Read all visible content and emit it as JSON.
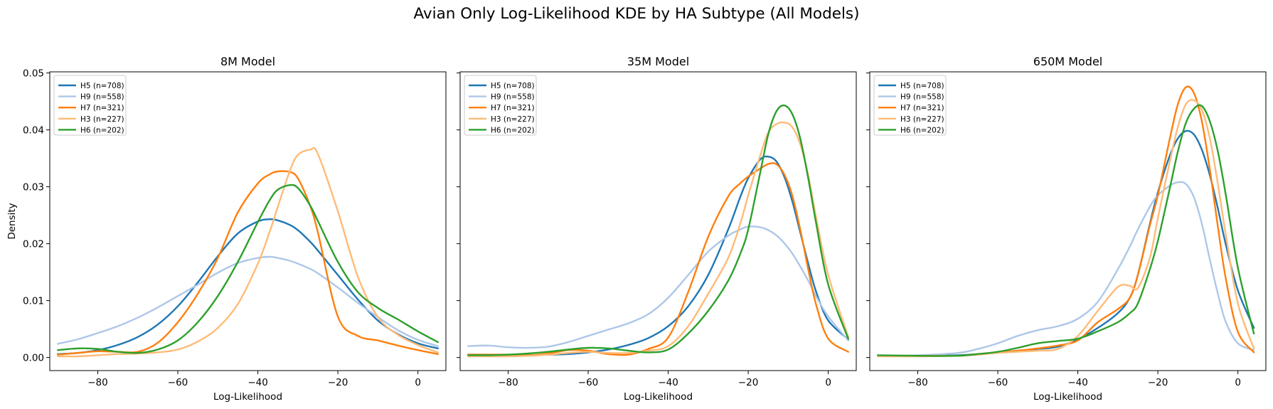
{
  "figure": {
    "suptitle": "Avian Only Log-Likelihood KDE by HA Subtype (All Models)"
  },
  "colors": {
    "H5": "#1f77b4",
    "H9": "#aec7e8",
    "H7": "#ff7f0e",
    "H3": "#ffbb78",
    "H6": "#2ca02c"
  },
  "chart_data": [
    {
      "type": "line",
      "title": "8M Model",
      "xlabel": "Log-Likelihood",
      "ylabel": "Density",
      "xlim": [
        -92,
        7
      ],
      "ylim": [
        -0.0023,
        0.0502
      ],
      "xticks": [
        -80,
        -60,
        -40,
        -20,
        0
      ],
      "xtick_labels": [
        "−80",
        "−60",
        "−40",
        "−20",
        "0"
      ],
      "yticks": [
        0.0,
        0.01,
        0.02,
        0.03,
        0.04,
        0.05
      ],
      "ytick_labels": [
        "0.00",
        "0.01",
        "0.02",
        "0.03",
        "0.04",
        "0.05"
      ],
      "legend_position": "upper-left",
      "grid": false,
      "x": [
        -90,
        -85,
        -80,
        -75,
        -70,
        -65,
        -60,
        -55,
        -50,
        -45,
        -40,
        -37,
        -35,
        -32,
        -30,
        -27,
        -25,
        -20,
        -15,
        -10,
        -5,
        0,
        5
      ],
      "series": [
        {
          "name": "H5 (n=708)",
          "key": "H5",
          "values": [
            0.0006,
            0.0008,
            0.0013,
            0.0022,
            0.0036,
            0.0058,
            0.009,
            0.0132,
            0.0178,
            0.0218,
            0.0239,
            0.0243,
            0.0241,
            0.0233,
            0.0224,
            0.0204,
            0.0188,
            0.0145,
            0.0102,
            0.0065,
            0.0041,
            0.0025,
            0.0016
          ]
        },
        {
          "name": "H9 (n=558)",
          "key": "H9",
          "values": [
            0.0024,
            0.0032,
            0.0043,
            0.0055,
            0.007,
            0.0088,
            0.0108,
            0.0128,
            0.0149,
            0.0166,
            0.0175,
            0.0177,
            0.0175,
            0.017,
            0.0165,
            0.0156,
            0.0148,
            0.0123,
            0.0096,
            0.0071,
            0.0048,
            0.0031,
            0.002
          ]
        },
        {
          "name": "H7 (n=321)",
          "key": "H7",
          "values": [
            0.0005,
            0.0008,
            0.0011,
            0.001,
            0.001,
            0.0026,
            0.0062,
            0.0112,
            0.0175,
            0.0255,
            0.0306,
            0.0322,
            0.0327,
            0.0326,
            0.0315,
            0.0268,
            0.022,
            0.0072,
            0.0038,
            0.003,
            0.0021,
            0.0013,
            0.0006
          ]
        },
        {
          "name": "H3 (n=227)",
          "key": "H3",
          "values": [
            0.0002,
            0.0002,
            0.0004,
            0.0006,
            0.0007,
            0.0009,
            0.0014,
            0.0028,
            0.0052,
            0.0094,
            0.0165,
            0.0222,
            0.0265,
            0.0328,
            0.0356,
            0.0365,
            0.0358,
            0.0257,
            0.0142,
            0.0071,
            0.004,
            0.0022,
            0.0009
          ]
        },
        {
          "name": "H6 (n=202)",
          "key": "H6",
          "values": [
            0.0013,
            0.0016,
            0.0015,
            0.001,
            0.0008,
            0.0014,
            0.003,
            0.0062,
            0.0108,
            0.0168,
            0.0238,
            0.0277,
            0.0295,
            0.0303,
            0.0298,
            0.0268,
            0.024,
            0.0168,
            0.0115,
            0.0087,
            0.0067,
            0.0046,
            0.0027
          ]
        }
      ]
    },
    {
      "type": "line",
      "title": "35M Model",
      "xlabel": "Log-Likelihood",
      "ylabel": "",
      "xlim": [
        -92,
        7
      ],
      "ylim": [
        -0.0023,
        0.0502
      ],
      "xticks": [
        -80,
        -60,
        -40,
        -20,
        0
      ],
      "xtick_labels": [
        "−80",
        "−60",
        "−40",
        "−20",
        "0"
      ],
      "yticks": [
        0.0,
        0.01,
        0.02,
        0.03,
        0.04,
        0.05
      ],
      "ytick_labels": [
        "",
        "",
        "",
        "",
        "",
        ""
      ],
      "legend_position": "upper-left",
      "grid": false,
      "x": [
        -90,
        -85,
        -80,
        -75,
        -70,
        -65,
        -60,
        -55,
        -50,
        -45,
        -40,
        -35,
        -30,
        -25,
        -22,
        -20,
        -17,
        -15,
        -13,
        -11,
        -9,
        -7,
        -5,
        -3,
        0,
        5
      ],
      "series": [
        {
          "name": "H5 (n=708)",
          "key": "H5",
          "values": [
            0.0005,
            0.0005,
            0.0004,
            0.0004,
            0.0005,
            0.0006,
            0.0009,
            0.0014,
            0.0022,
            0.0034,
            0.0055,
            0.009,
            0.0145,
            0.0225,
            0.0282,
            0.0315,
            0.0348,
            0.0353,
            0.0345,
            0.0318,
            0.0275,
            0.022,
            0.0165,
            0.0115,
            0.0065,
            0.0032
          ]
        },
        {
          "name": "H9 (n=558)",
          "key": "H9",
          "values": [
            0.002,
            0.0021,
            0.0018,
            0.0017,
            0.0019,
            0.0027,
            0.0038,
            0.0049,
            0.006,
            0.0076,
            0.0105,
            0.0145,
            0.0186,
            0.0214,
            0.0225,
            0.023,
            0.0229,
            0.0224,
            0.0215,
            0.0201,
            0.0183,
            0.016,
            0.0135,
            0.0107,
            0.0072,
            0.003
          ]
        },
        {
          "name": "H7 (n=321)",
          "key": "H7",
          "values": [
            0.0005,
            0.0005,
            0.0005,
            0.0004,
            0.0007,
            0.0013,
            0.0012,
            0.0006,
            0.0005,
            0.0015,
            0.0035,
            0.0115,
            0.0212,
            0.0283,
            0.0306,
            0.0318,
            0.0332,
            0.034,
            0.034,
            0.0322,
            0.0285,
            0.0225,
            0.0155,
            0.0092,
            0.0033,
            0.001
          ]
        },
        {
          "name": "H3 (n=227)",
          "key": "H3",
          "values": [
            0.0002,
            0.0002,
            0.0002,
            0.0003,
            0.0005,
            0.0008,
            0.001,
            0.0008,
            0.0008,
            0.0012,
            0.002,
            0.0055,
            0.0112,
            0.0175,
            0.0235,
            0.0285,
            0.0355,
            0.0395,
            0.041,
            0.0413,
            0.0405,
            0.0375,
            0.032,
            0.0245,
            0.0145,
            0.0036
          ]
        },
        {
          "name": "H6 (n=202)",
          "key": "H6",
          "values": [
            0.0004,
            0.0004,
            0.0005,
            0.0007,
            0.001,
            0.0014,
            0.0017,
            0.0016,
            0.0012,
            0.0009,
            0.0014,
            0.0042,
            0.0082,
            0.0135,
            0.0182,
            0.0225,
            0.0325,
            0.0392,
            0.0432,
            0.0443,
            0.0428,
            0.0385,
            0.0315,
            0.0235,
            0.0128,
            0.0033
          ]
        }
      ]
    },
    {
      "type": "line",
      "title": "650M Model",
      "xlabel": "Log-Likelihood",
      "ylabel": "",
      "xlim": [
        -92,
        7
      ],
      "ylim": [
        -0.0023,
        0.0502
      ],
      "xticks": [
        -80,
        -60,
        -40,
        -20,
        0
      ],
      "xtick_labels": [
        "−80",
        "−60",
        "−40",
        "−20",
        "0"
      ],
      "yticks": [
        0.0,
        0.01,
        0.02,
        0.03,
        0.04,
        0.05
      ],
      "ytick_labels": [
        "",
        "",
        "",
        "",
        "",
        ""
      ],
      "legend_position": "upper-left",
      "grid": false,
      "x": [
        -90,
        -80,
        -70,
        -65,
        -60,
        -55,
        -50,
        -45,
        -40,
        -35,
        -30,
        -27,
        -25,
        -22,
        -20,
        -17,
        -15,
        -13,
        -11,
        -9,
        -7,
        -5,
        -3,
        0,
        4
      ],
      "series": [
        {
          "name": "H5 (n=708)",
          "key": "H5",
          "values": [
            0.0003,
            0.0003,
            0.0004,
            0.0006,
            0.0009,
            0.0012,
            0.0015,
            0.0019,
            0.0032,
            0.0052,
            0.0078,
            0.0105,
            0.0145,
            0.0235,
            0.029,
            0.0355,
            0.0385,
            0.0398,
            0.0392,
            0.0365,
            0.032,
            0.0262,
            0.0198,
            0.0118,
            0.0052
          ]
        },
        {
          "name": "H9 (n=558)",
          "key": "H9",
          "values": [
            0.0003,
            0.0004,
            0.0008,
            0.0015,
            0.0025,
            0.0038,
            0.0048,
            0.0055,
            0.0068,
            0.0098,
            0.0155,
            0.0195,
            0.0225,
            0.0265,
            0.0285,
            0.0302,
            0.0308,
            0.0305,
            0.0282,
            0.0235,
            0.0172,
            0.0112,
            0.0062,
            0.0025,
            0.0013
          ]
        },
        {
          "name": "H7 (n=321)",
          "key": "H7",
          "values": [
            0.0003,
            0.0003,
            0.0003,
            0.0006,
            0.0009,
            0.0012,
            0.0016,
            0.0021,
            0.003,
            0.0062,
            0.0085,
            0.0105,
            0.0145,
            0.0232,
            0.0285,
            0.0385,
            0.0445,
            0.0475,
            0.0465,
            0.0415,
            0.033,
            0.023,
            0.0138,
            0.0045,
            0.0009
          ]
        },
        {
          "name": "H3 (n=227)",
          "key": "H3",
          "values": [
            0.0002,
            0.0002,
            0.0003,
            0.0005,
            0.0008,
            0.001,
            0.0012,
            0.0015,
            0.0038,
            0.0082,
            0.0124,
            0.0126,
            0.0122,
            0.0175,
            0.0245,
            0.0345,
            0.0405,
            0.0445,
            0.0452,
            0.0435,
            0.0385,
            0.0305,
            0.0215,
            0.0095,
            0.0016
          ]
        },
        {
          "name": "H6 (n=202)",
          "key": "H6",
          "values": [
            0.0004,
            0.0003,
            0.0003,
            0.0006,
            0.001,
            0.0017,
            0.0025,
            0.0029,
            0.0033,
            0.0046,
            0.0062,
            0.0078,
            0.0095,
            0.0155,
            0.0205,
            0.0298,
            0.0362,
            0.0412,
            0.0437,
            0.0442,
            0.0415,
            0.0362,
            0.0285,
            0.0158,
            0.0042
          ]
        }
      ]
    }
  ]
}
